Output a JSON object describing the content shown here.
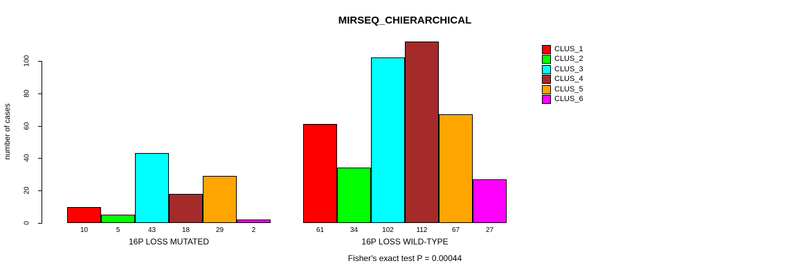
{
  "chart_data": {
    "type": "bar",
    "title": "MIRSEQ_CHIERARCHICAL",
    "ylabel": "number of cases",
    "xlabel": "",
    "ylim": [
      0,
      115
    ],
    "yticks": [
      0,
      20,
      40,
      60,
      80,
      100
    ],
    "grid": false,
    "legend_position": "top-right",
    "categories": [
      "16P LOSS MUTATED",
      "16P LOSS WILD-TYPE"
    ],
    "series": [
      {
        "name": "CLUS_1",
        "color": "#FF0000",
        "values": [
          10,
          61
        ]
      },
      {
        "name": "CLUS_2",
        "color": "#00FF00",
        "values": [
          5,
          34
        ]
      },
      {
        "name": "CLUS_3",
        "color": "#00FFFF",
        "values": [
          43,
          102
        ]
      },
      {
        "name": "CLUS_4",
        "color": "#A52A2A",
        "values": [
          18,
          112
        ]
      },
      {
        "name": "CLUS_5",
        "color": "#FFA500",
        "values": [
          29,
          67
        ]
      },
      {
        "name": "CLUS_6",
        "color": "#FF00FF",
        "values": [
          2,
          27
        ]
      }
    ],
    "bar_value_labels": [
      [
        10,
        5,
        43,
        18,
        29,
        2
      ],
      [
        61,
        34,
        102,
        112,
        67,
        27
      ]
    ],
    "annotation": "Fisher's exact test P = 0.00044"
  }
}
